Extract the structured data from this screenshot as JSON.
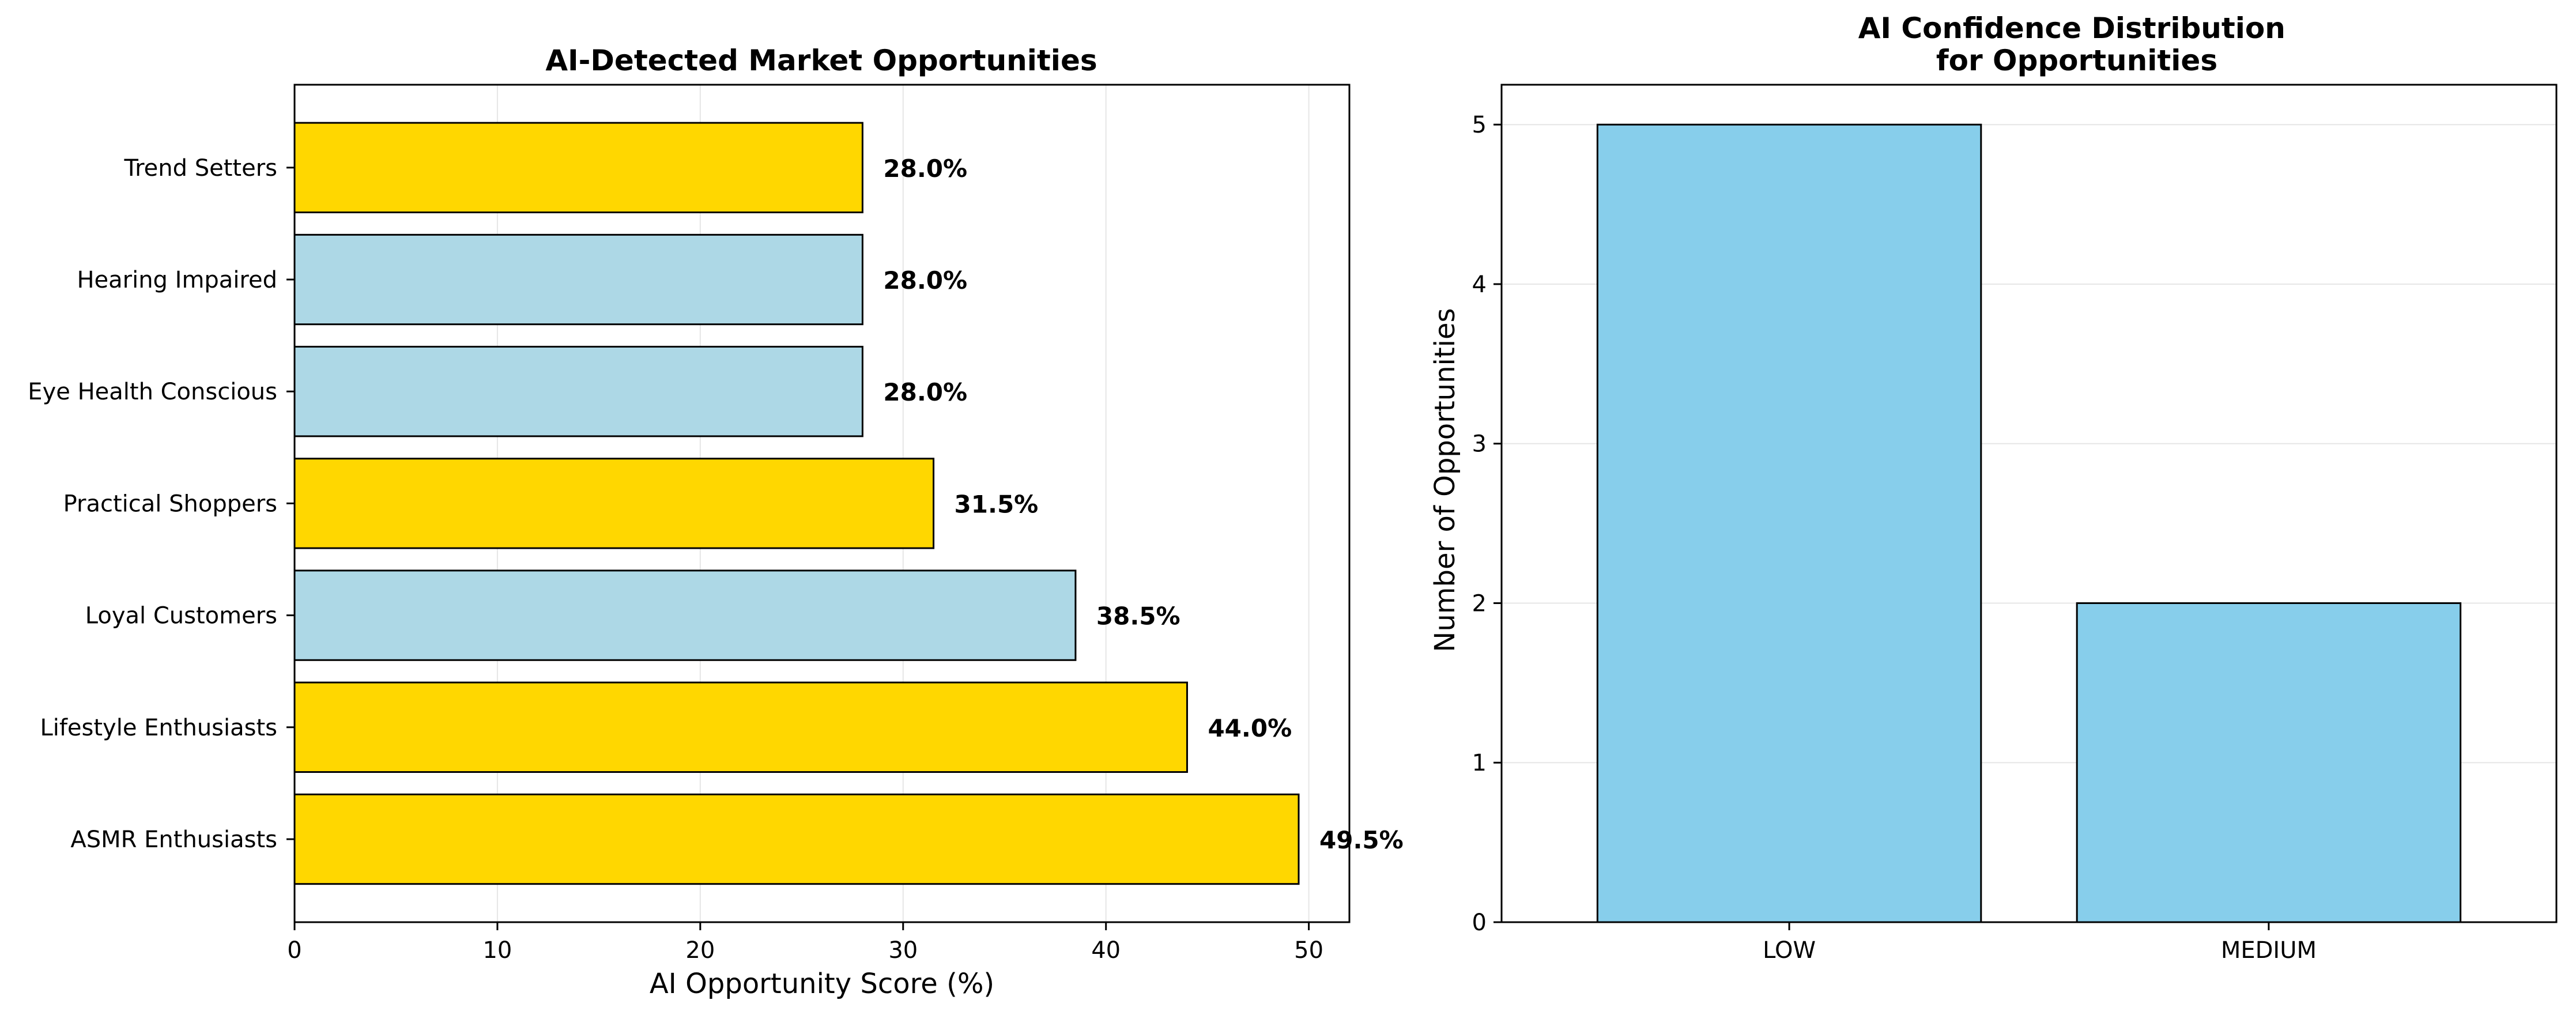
{
  "chart_data": [
    {
      "type": "bar",
      "orientation": "horizontal",
      "title": "AI-Detected Market Opportunities",
      "xlabel": "AI Opportunity Score (%)",
      "ylabel": "",
      "categories": [
        "ASMR Enthusiasts",
        "Lifestyle Enthusiasts",
        "Loyal Customers",
        "Practical Shoppers",
        "Eye Health Conscious",
        "Hearing Impaired",
        "Trend Setters"
      ],
      "values": [
        49.5,
        44.0,
        38.5,
        31.5,
        28.0,
        28.0,
        28.0
      ],
      "value_labels": [
        "49.5%",
        "44.0%",
        "38.5%",
        "31.5%",
        "28.0%",
        "28.0%",
        "28.0%"
      ],
      "bar_colors": [
        "#FFD700",
        "#FFD700",
        "#ADD8E6",
        "#FFD700",
        "#ADD8E6",
        "#ADD8E6",
        "#FFD700"
      ],
      "xlim": [
        0,
        52
      ],
      "xticks": [
        0,
        10,
        20,
        30,
        40,
        50
      ],
      "grid": "x"
    },
    {
      "type": "bar",
      "orientation": "vertical",
      "title": "AI Confidence Distribution\nfor Opportunities",
      "xlabel": "",
      "ylabel": "Number of Opportunities",
      "categories": [
        "LOW",
        "MEDIUM"
      ],
      "values": [
        5,
        2
      ],
      "bar_colors": [
        "#87CEEB",
        "#87CEEB"
      ],
      "ylim": [
        0,
        5.25
      ],
      "yticks": [
        0,
        1,
        2,
        3,
        4,
        5
      ],
      "grid": "y"
    }
  ]
}
